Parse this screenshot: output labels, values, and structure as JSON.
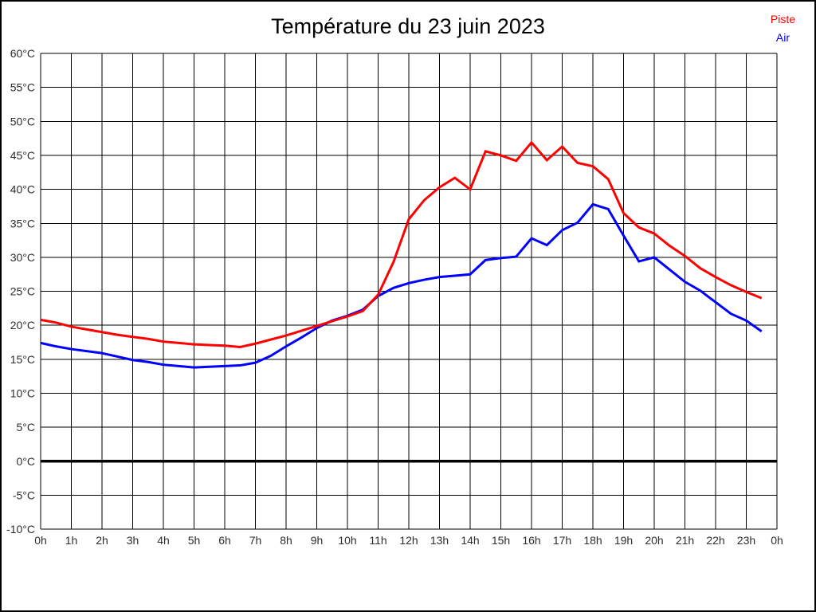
{
  "title": "Température du 23 juin 2023",
  "legend": {
    "piste_label": "Piste",
    "air_label": "Air"
  },
  "chart_data": {
    "type": "line",
    "title": "Température du 23 juin 2023",
    "grid": true,
    "legend_position": "top-right",
    "ylabel": "°C",
    "ylim": [
      -10,
      60
    ],
    "xlim_hours": [
      0,
      24
    ],
    "zero_line_bold": true,
    "y_ticks": [
      {
        "value": 60,
        "label": "60°C"
      },
      {
        "value": 55,
        "label": "55°C"
      },
      {
        "value": 50,
        "label": "50°C"
      },
      {
        "value": 45,
        "label": "45°C"
      },
      {
        "value": 40,
        "label": "40°C"
      },
      {
        "value": 35,
        "label": "35°C"
      },
      {
        "value": 30,
        "label": "30°C"
      },
      {
        "value": 25,
        "label": "25°C"
      },
      {
        "value": 20,
        "label": "20°C"
      },
      {
        "value": 15,
        "label": "15°C"
      },
      {
        "value": 10,
        "label": "10°C"
      },
      {
        "value": 5,
        "label": "5°C"
      },
      {
        "value": 0,
        "label": "0°C"
      },
      {
        "value": -5,
        "label": "-5°C"
      },
      {
        "value": -10,
        "label": "-10°C"
      }
    ],
    "x_ticks": [
      {
        "value": 0,
        "label": "0h"
      },
      {
        "value": 1,
        "label": "1h"
      },
      {
        "value": 2,
        "label": "2h"
      },
      {
        "value": 3,
        "label": "3h"
      },
      {
        "value": 4,
        "label": "4h"
      },
      {
        "value": 5,
        "label": "5h"
      },
      {
        "value": 6,
        "label": "6h"
      },
      {
        "value": 7,
        "label": "7h"
      },
      {
        "value": 8,
        "label": "8h"
      },
      {
        "value": 9,
        "label": "9h"
      },
      {
        "value": 10,
        "label": "10h"
      },
      {
        "value": 11,
        "label": "11h"
      },
      {
        "value": 12,
        "label": "12h"
      },
      {
        "value": 13,
        "label": "13h"
      },
      {
        "value": 14,
        "label": "14h"
      },
      {
        "value": 15,
        "label": "15h"
      },
      {
        "value": 16,
        "label": "16h"
      },
      {
        "value": 17,
        "label": "17h"
      },
      {
        "value": 18,
        "label": "18h"
      },
      {
        "value": 19,
        "label": "19h"
      },
      {
        "value": 20,
        "label": "20h"
      },
      {
        "value": 21,
        "label": "21h"
      },
      {
        "value": 22,
        "label": "22h"
      },
      {
        "value": 23,
        "label": "23h"
      },
      {
        "value": 24,
        "label": "0h"
      }
    ],
    "x": [
      0,
      0.5,
      1,
      1.5,
      2,
      2.5,
      3,
      3.5,
      4,
      4.5,
      5,
      5.5,
      6,
      6.5,
      7,
      7.5,
      8,
      8.5,
      9,
      9.5,
      10,
      10.5,
      11,
      11.5,
      12,
      12.5,
      13,
      13.5,
      14,
      14.5,
      15,
      15.5,
      16,
      16.5,
      17,
      17.5,
      18,
      18.5,
      19,
      19.5,
      20,
      20.5,
      21,
      21.5,
      22,
      22.5,
      23,
      23.5
    ],
    "series": [
      {
        "name": "Piste",
        "color": "#ff0000",
        "values": [
          20.8,
          20.4,
          19.8,
          19.4,
          19.0,
          18.6,
          18.3,
          18.0,
          17.6,
          17.4,
          17.2,
          17.1,
          17.0,
          16.8,
          17.3,
          17.9,
          18.5,
          19.2,
          19.9,
          20.6,
          21.3,
          22.1,
          24.5,
          29.3,
          35.6,
          38.4,
          40.3,
          41.7,
          40.0,
          45.6,
          45.0,
          44.2,
          46.9,
          44.3,
          46.3,
          43.9,
          43.4,
          41.5,
          36.5,
          34.4,
          33.5,
          31.7,
          30.2,
          28.4,
          27.1,
          25.9,
          24.9,
          24.0
        ]
      },
      {
        "name": "Air",
        "color": "#0000ff",
        "values": [
          17.4,
          16.9,
          16.5,
          16.2,
          15.9,
          15.4,
          14.9,
          14.6,
          14.2,
          14.0,
          13.8,
          13.9,
          14.0,
          14.1,
          14.5,
          15.5,
          16.9,
          18.2,
          19.6,
          20.7,
          21.4,
          22.3,
          24.3,
          25.5,
          26.2,
          26.7,
          27.1,
          27.3,
          27.5,
          29.6,
          29.9,
          30.1,
          32.8,
          31.8,
          34.0,
          35.1,
          37.8,
          37.1,
          33.2,
          29.4,
          30.0,
          28.2,
          26.4,
          25.1,
          23.4,
          21.7,
          20.7,
          19.1
        ]
      }
    ]
  }
}
